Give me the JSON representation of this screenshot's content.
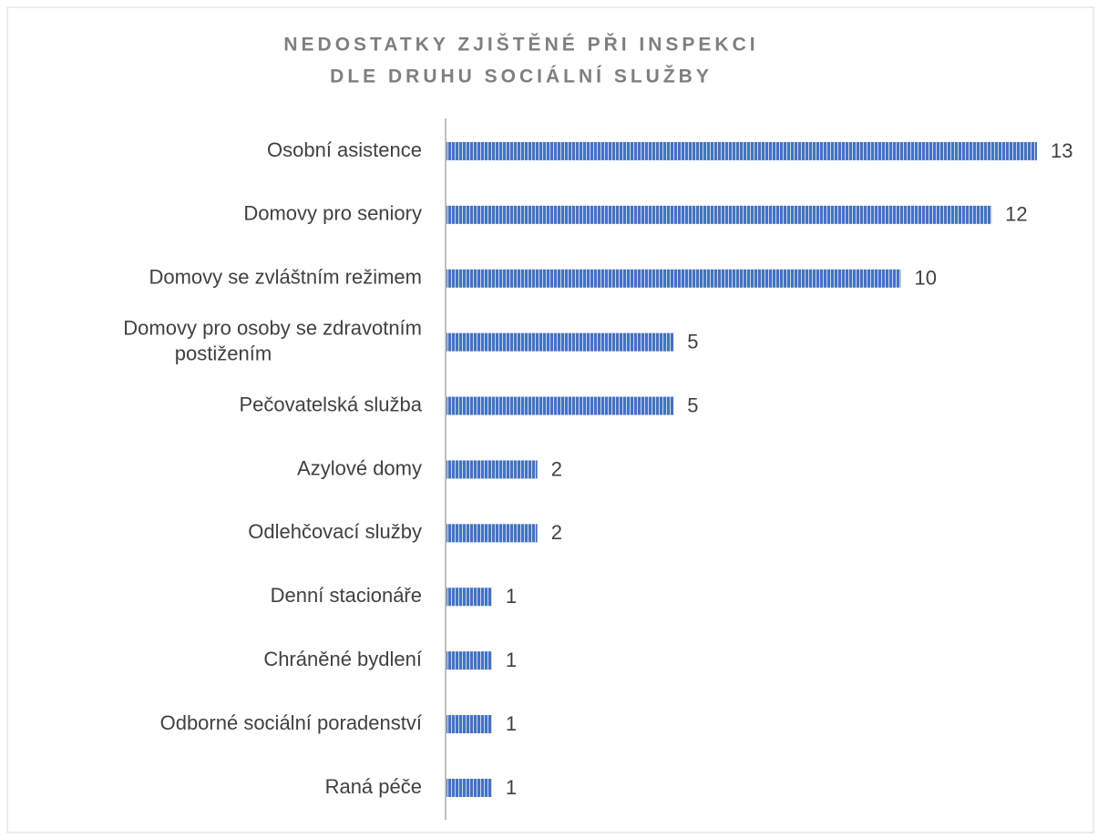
{
  "chart_data": {
    "type": "bar",
    "orientation": "horizontal",
    "title": [
      "NEDOSTATKY ZJIŠTĚNÉ PŘI INSPEKCI",
      "DLE DRUHU SOCIÁLNÍ SLUŽBY"
    ],
    "categories": [
      "Osobní asistence",
      "Domovy pro seniory",
      "Domovy se zvláštním režimem",
      "Domovy pro osoby se zdravotním postižením",
      "Pečovatelská služba",
      "Azylové domy",
      "Odlehčovací služby",
      "Denní stacionáře",
      "Chráněné bydlení",
      "Odborné sociální poradenství",
      "Raná péče"
    ],
    "values": [
      13,
      12,
      10,
      5,
      5,
      2,
      2,
      1,
      1,
      1,
      1
    ],
    "color": "#4472c4"
  }
}
